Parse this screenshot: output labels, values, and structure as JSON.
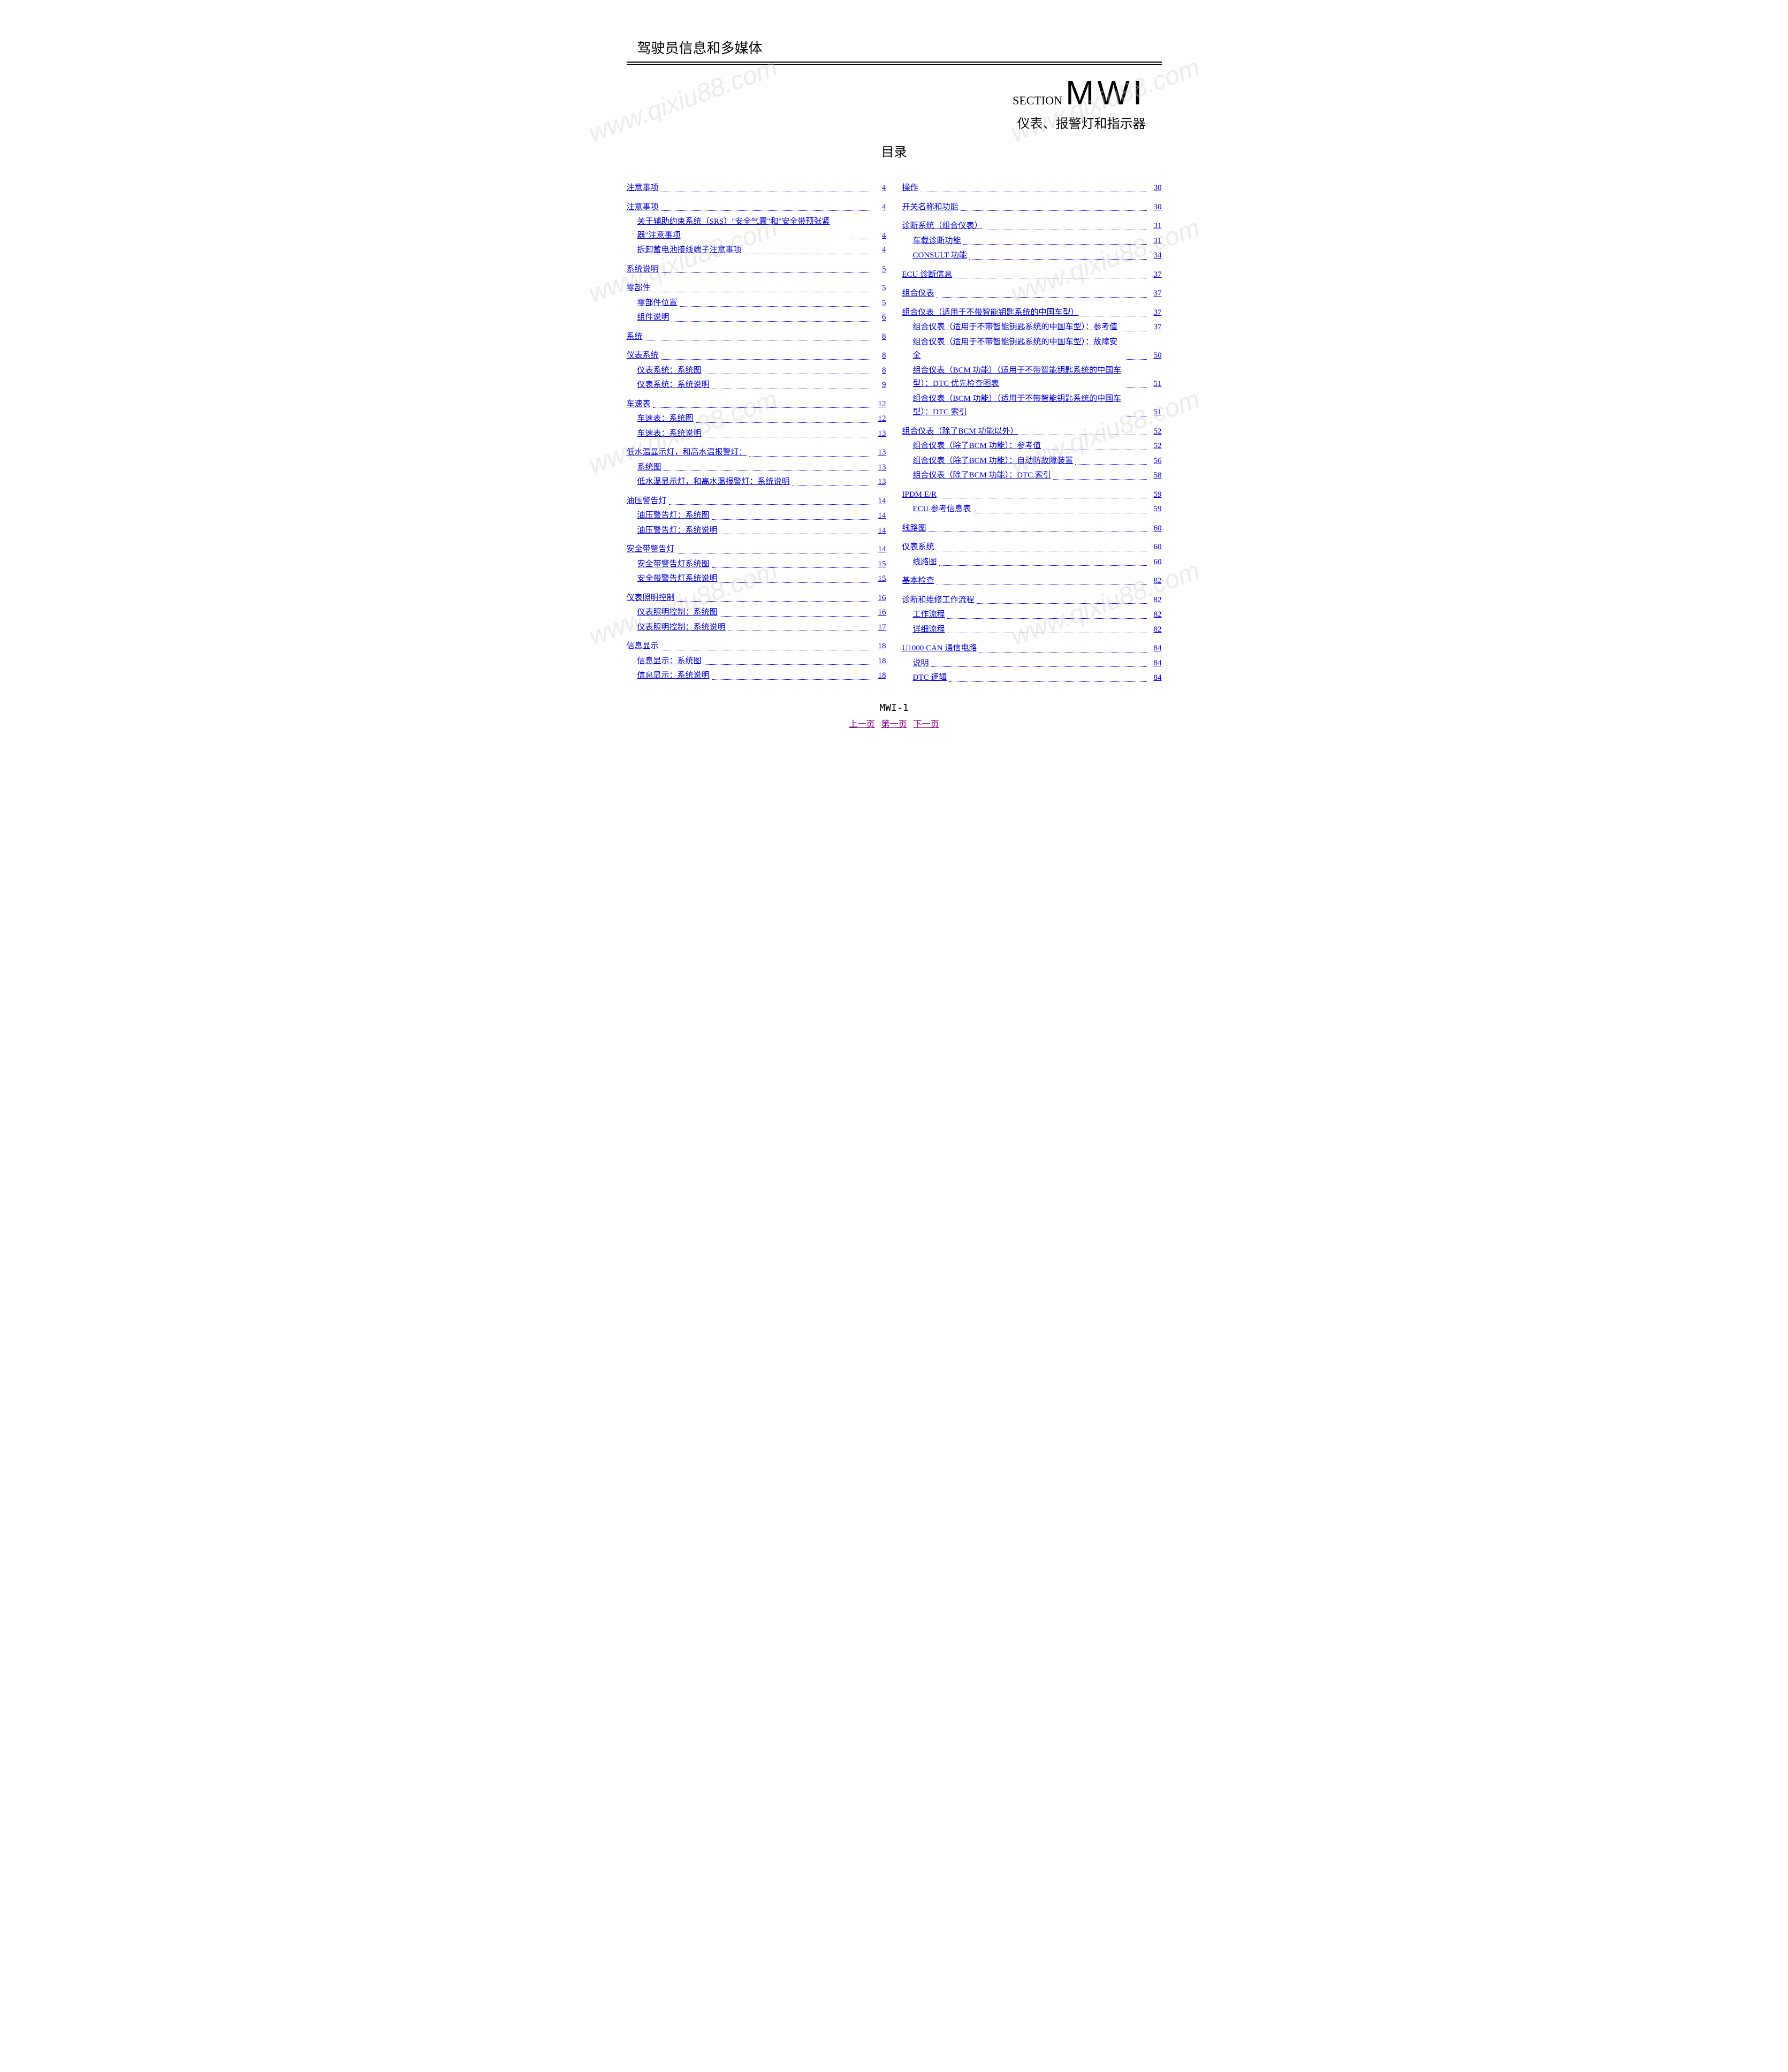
{
  "header": {
    "doc_title": "驾驶员信息和多媒体",
    "section_label": "SECTION",
    "section_code": "MWI",
    "section_subtitle": "仪表、报警灯和指示器",
    "toc_title": "目录"
  },
  "footer": {
    "page_label": "MWI-1",
    "nav_prev": "上一页",
    "nav_first": "第一页",
    "nav_next": "下一页"
  },
  "watermark": {
    "text": "www.qixiu88.com"
  },
  "toc_left": [
    {
      "lvl": 0,
      "label": "注意事项",
      "page": "4"
    },
    {
      "lvl": 0,
      "label": "注意事项",
      "page": "4"
    },
    {
      "lvl": 1,
      "label": "关于辅助约束系统（SRS）\"安全气囊\"和\"安全带预张紧器\"注意事项",
      "page": "4",
      "multi": true
    },
    {
      "lvl": 1,
      "label": "拆卸蓄电池接线端子注意事项",
      "page": "4"
    },
    {
      "lvl": 0,
      "label": "系统说明",
      "page": "5"
    },
    {
      "lvl": 0,
      "label": "零部件",
      "page": "5"
    },
    {
      "lvl": 1,
      "label": "零部件位置",
      "page": "5"
    },
    {
      "lvl": 1,
      "label": "组件说明",
      "page": "6"
    },
    {
      "lvl": 0,
      "label": "系统",
      "page": "8"
    },
    {
      "lvl": 0,
      "label": "仪表系统",
      "page": "8"
    },
    {
      "lvl": 1,
      "label": "仪表系统：系统图",
      "page": "8"
    },
    {
      "lvl": 1,
      "label": "仪表系统：系统说明",
      "page": "9"
    },
    {
      "lvl": 0,
      "label": "车速表",
      "page": "12"
    },
    {
      "lvl": 1,
      "label": "车速表：系统图",
      "page": "12"
    },
    {
      "lvl": 1,
      "label": "车速表：系统说明",
      "page": "13"
    },
    {
      "lvl": 0,
      "label": "低水温显示灯，和高水温报警灯：",
      "page": "13"
    },
    {
      "lvl": 1,
      "label": "系统图",
      "page": "13"
    },
    {
      "lvl": 1,
      "label": "低水温显示灯，和高水温报警灯：系统说明",
      "page": "13"
    },
    {
      "lvl": 0,
      "label": "油压警告灯",
      "page": "14"
    },
    {
      "lvl": 1,
      "label": "油压警告灯：系统图",
      "page": "14"
    },
    {
      "lvl": 1,
      "label": "油压警告灯：系统说明",
      "page": "14"
    },
    {
      "lvl": 0,
      "label": "安全带警告灯",
      "page": "14"
    },
    {
      "lvl": 1,
      "label": "安全带警告灯系统图",
      "page": "15"
    },
    {
      "lvl": 1,
      "label": "安全带警告灯系统说明",
      "page": "15"
    },
    {
      "lvl": 0,
      "label": "仪表照明控制",
      "page": "16"
    },
    {
      "lvl": 1,
      "label": "仪表照明控制：系统图",
      "page": "16"
    },
    {
      "lvl": 1,
      "label": "仪表照明控制：系统说明",
      "page": "17"
    },
    {
      "lvl": 0,
      "label": "信息显示",
      "page": "18"
    },
    {
      "lvl": 1,
      "label": "信息显示：系统图",
      "page": "18"
    },
    {
      "lvl": 1,
      "label": "信息显示：系统说明",
      "page": "18"
    }
  ],
  "toc_right": [
    {
      "lvl": 0,
      "label": "操作",
      "page": "30"
    },
    {
      "lvl": 0,
      "label": "开关名称和功能",
      "page": "30"
    },
    {
      "lvl": 0,
      "label": "诊断系统（组合仪表）",
      "page": "31"
    },
    {
      "lvl": 1,
      "label": "车载诊断功能",
      "page": "31"
    },
    {
      "lvl": 1,
      "label": "CONSULT 功能",
      "page": "34"
    },
    {
      "lvl": 0,
      "label": "ECU 诊断信息",
      "page": "37"
    },
    {
      "lvl": 0,
      "label": "组合仪表",
      "page": "37"
    },
    {
      "lvl": 0,
      "label": "组合仪表（适用于不带智能钥匙系统的中国车型）",
      "page": "37"
    },
    {
      "lvl": 1,
      "label": "组合仪表（适用于不带智能钥匙系统的中国车型）：参考值",
      "page": "37",
      "multi": true
    },
    {
      "lvl": 1,
      "label": "组合仪表（适用于不带智能钥匙系统的中国车型）：故障安全",
      "page": "50",
      "multi": true
    },
    {
      "lvl": 1,
      "label": "组合仪表（BCM 功能）（适用于不带智能钥匙系统的中国车型）：DTC 优先检查图表",
      "page": "51",
      "multi": true
    },
    {
      "lvl": 1,
      "label": "组合仪表（BCM 功能）（适用于不带智能钥匙系统的中国车型）：DTC 索引",
      "page": "51",
      "multi": true
    },
    {
      "lvl": 0,
      "label": "组合仪表（除了BCM 功能以外）",
      "page": "52"
    },
    {
      "lvl": 1,
      "label": "组合仪表（除了BCM 功能）：参考值",
      "page": "52"
    },
    {
      "lvl": 1,
      "label": "组合仪表（除了BCM 功能）：自动防故障装置",
      "page": "56"
    },
    {
      "lvl": 1,
      "label": "组合仪表（除了BCM 功能）：DTC 索引",
      "page": "58"
    },
    {
      "lvl": 0,
      "label": "IPDM E/R",
      "page": "59"
    },
    {
      "lvl": 1,
      "label": "ECU 参考信息表",
      "page": "59"
    },
    {
      "lvl": 0,
      "label": "线路图",
      "page": "60"
    },
    {
      "lvl": 0,
      "label": "仪表系统",
      "page": "60"
    },
    {
      "lvl": 1,
      "label": "线路图",
      "page": "60"
    },
    {
      "lvl": 0,
      "label": "基本检查",
      "page": "82"
    },
    {
      "lvl": 0,
      "label": "诊断和维修工作流程",
      "page": "82"
    },
    {
      "lvl": 1,
      "label": "工作流程",
      "page": "82"
    },
    {
      "lvl": 1,
      "label": "详细流程",
      "page": "82"
    },
    {
      "lvl": 0,
      "label": "U1000 CAN 通信电路",
      "page": "84"
    },
    {
      "lvl": 1,
      "label": "说明",
      "page": "84"
    },
    {
      "lvl": 1,
      "label": "DTC 逻辑",
      "page": "84"
    }
  ],
  "colors": {
    "link_color": "#0000cc",
    "visited_color": "#800080",
    "text_color": "#000000",
    "rule_color": "#000000",
    "background": "#ffffff",
    "watermark_color": "rgba(200,200,200,0.35)"
  }
}
